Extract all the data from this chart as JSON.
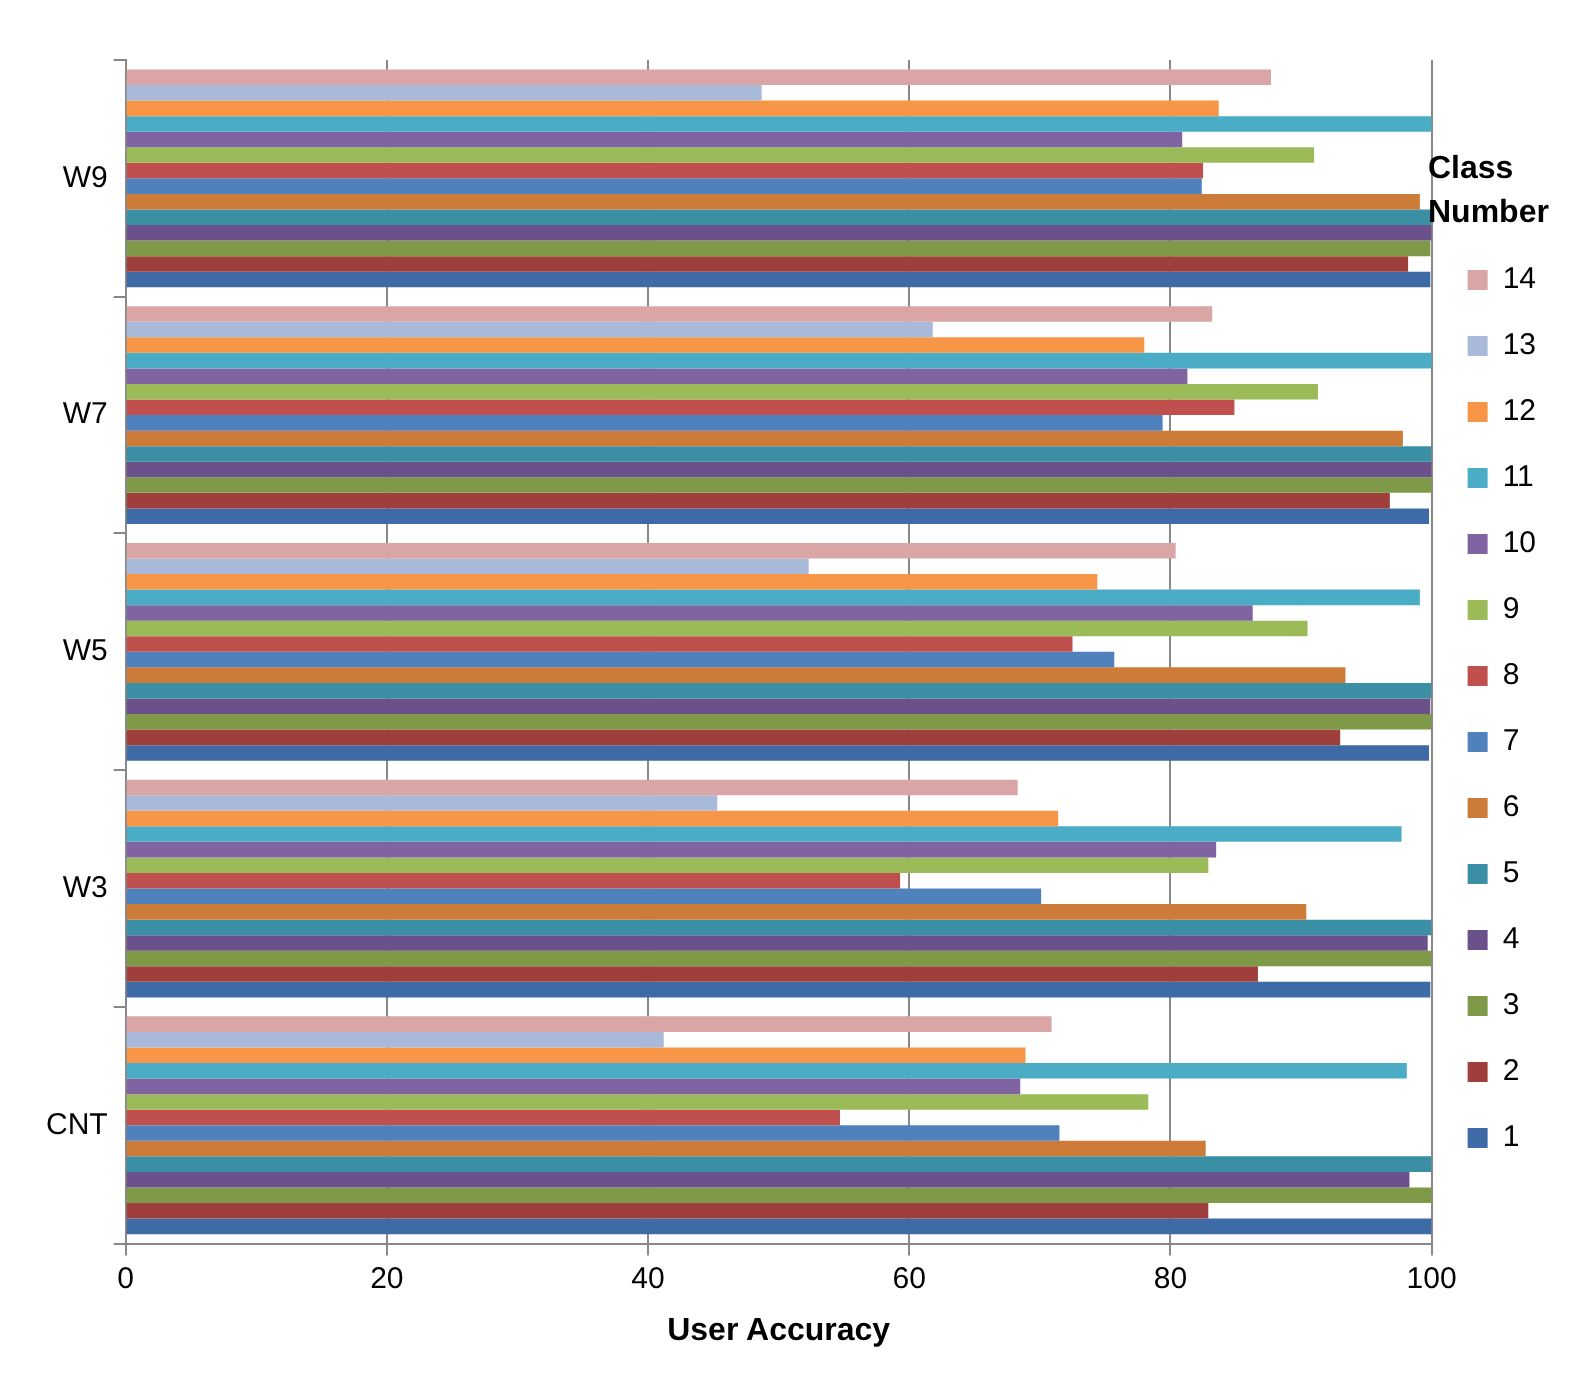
{
  "chart_data": {
    "type": "bar",
    "orientation": "horizontal",
    "xlabel": "User Accuracy",
    "legend_title": "Class Number",
    "legend": "right",
    "grid": "x",
    "categories": [
      "W9",
      "W7",
      "W5",
      "W3",
      "CNT"
    ],
    "xlim": [
      0,
      100
    ],
    "xticks": [
      0,
      20,
      40,
      60,
      80,
      100
    ],
    "series": [
      {
        "name": "14",
        "color": "#d9a5a5",
        "values": [
          87.7,
          83.2,
          80.4,
          68.3,
          70.9
        ]
      },
      {
        "name": "13",
        "color": "#a9b9d9",
        "values": [
          48.7,
          61.8,
          52.3,
          45.3,
          41.2
        ]
      },
      {
        "name": "12",
        "color": "#f79646",
        "values": [
          83.7,
          78.0,
          74.4,
          71.4,
          68.9
        ]
      },
      {
        "name": "11",
        "color": "#4bacc6",
        "values": [
          100,
          100,
          99.1,
          97.7,
          98.1
        ]
      },
      {
        "name": "10",
        "color": "#8064a2",
        "values": [
          80.9,
          81.3,
          86.3,
          83.5,
          68.5
        ]
      },
      {
        "name": "9",
        "color": "#9bbb59",
        "values": [
          91.0,
          91.3,
          90.5,
          82.9,
          78.3
        ]
      },
      {
        "name": "8",
        "color": "#c0504d",
        "values": [
          82.5,
          84.9,
          72.5,
          59.3,
          54.7
        ]
      },
      {
        "name": "7",
        "color": "#4f81bd",
        "values": [
          82.4,
          79.4,
          75.7,
          70.1,
          71.5
        ]
      },
      {
        "name": "6",
        "color": "#cc7c38",
        "values": [
          99.1,
          97.8,
          93.4,
          90.4,
          82.7
        ]
      },
      {
        "name": "5",
        "color": "#3b8fa5",
        "values": [
          100,
          100,
          100,
          100,
          100
        ]
      },
      {
        "name": "4",
        "color": "#6a5189",
        "values": [
          100,
          100,
          99.9,
          99.7,
          98.3
        ]
      },
      {
        "name": "3",
        "color": "#7e9a48",
        "values": [
          99.9,
          100,
          100,
          100,
          100
        ]
      },
      {
        "name": "2",
        "color": "#9e3f3c",
        "values": [
          98.2,
          96.8,
          93.0,
          86.7,
          82.9
        ]
      },
      {
        "name": "1",
        "color": "#3e6aa5",
        "values": [
          99.9,
          99.8,
          99.8,
          99.9,
          100
        ]
      }
    ]
  }
}
